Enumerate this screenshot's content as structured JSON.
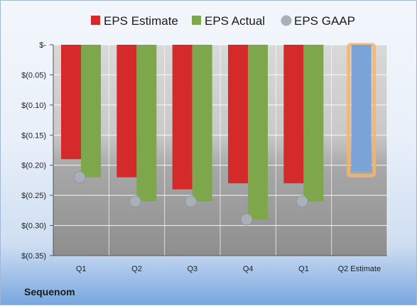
{
  "company": "Sequenom",
  "colors": {
    "estimate": "#d42a2a",
    "actual": "#7ea64a",
    "gaap": "#a9b0b8",
    "q2_estimate_fill": "#7aa3d8",
    "q2_estimate_outline": "#f2b572"
  },
  "chart_data": {
    "type": "bar",
    "categories": [
      "Q1",
      "Q2",
      "Q3",
      "Q4",
      "Q1",
      "Q2 Estimate"
    ],
    "series": [
      {
        "name": "EPS Estimate",
        "values": [
          -0.19,
          -0.22,
          -0.24,
          -0.23,
          -0.23,
          null
        ]
      },
      {
        "name": "EPS Actual",
        "values": [
          -0.22,
          -0.26,
          -0.26,
          -0.29,
          -0.26,
          -0.21
        ]
      },
      {
        "name": "EPS GAAP",
        "values": [
          -0.22,
          -0.26,
          -0.26,
          -0.29,
          -0.26,
          null
        ]
      }
    ],
    "yticks": [
      {
        "value": 0,
        "label": "$-"
      },
      {
        "value": -0.05,
        "label": "$(0.05)"
      },
      {
        "value": -0.1,
        "label": "$(0.10)"
      },
      {
        "value": -0.15,
        "label": "$(0.15)"
      },
      {
        "value": -0.2,
        "label": "$(0.20)"
      },
      {
        "value": -0.25,
        "label": "$(0.25)"
      },
      {
        "value": -0.3,
        "label": "$(0.30)"
      },
      {
        "value": -0.35,
        "label": "$(0.35)"
      }
    ],
    "ylim": [
      -0.35,
      0
    ],
    "grid": true,
    "legend_position": "top"
  }
}
